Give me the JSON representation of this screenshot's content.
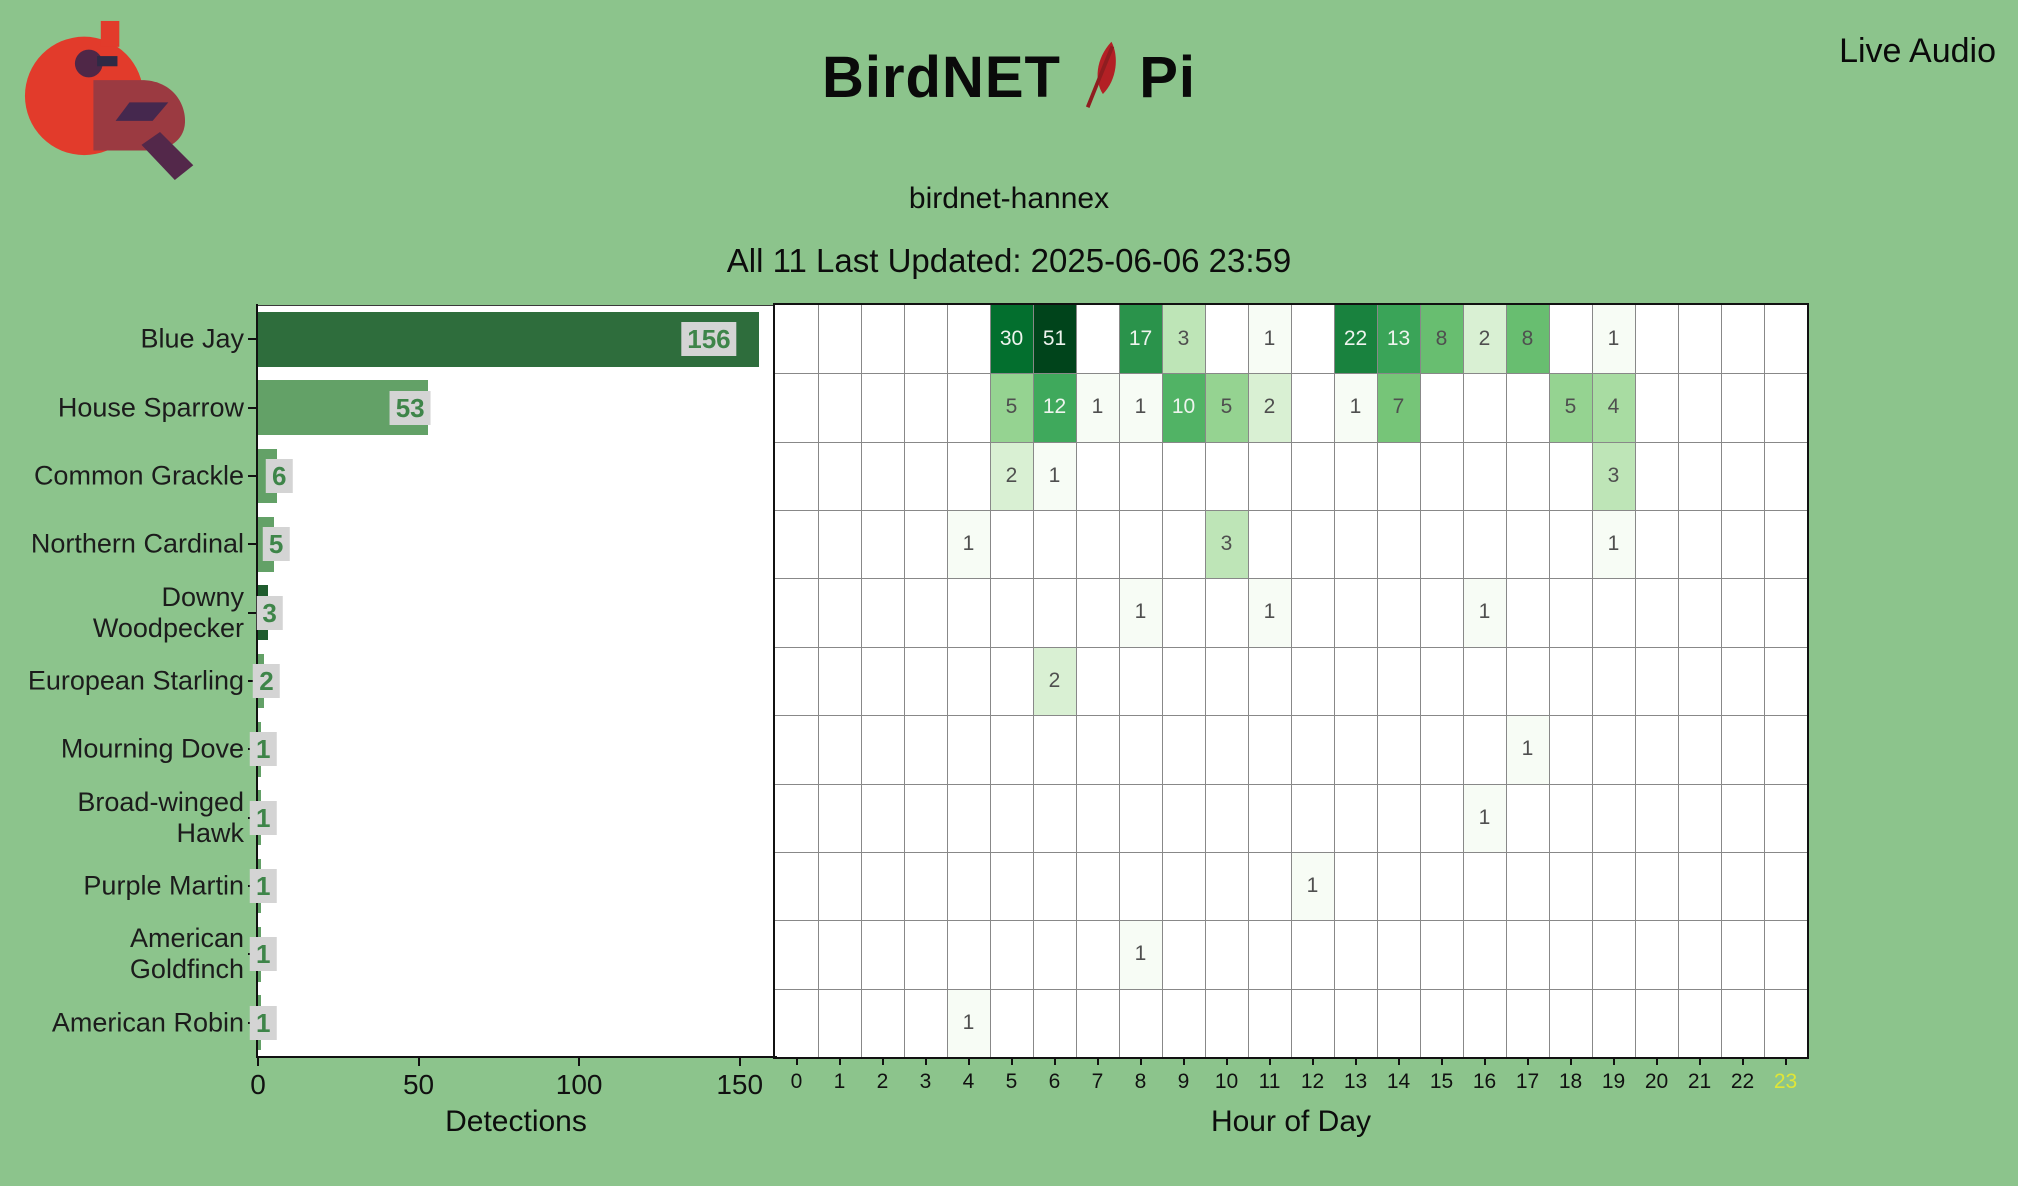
{
  "page": {
    "background": "#8cc48c"
  },
  "header": {
    "title": {
      "part1": "BirdNET",
      "part2": "Pi"
    },
    "nav": {
      "live_audio_label": "Live Audio"
    },
    "station_name": "birdnet-hannex",
    "status_line": "All 11 Last Updated: 2025-06-06 23:59"
  },
  "icons": {
    "logo": "cardinal-logo",
    "title_icon": "red-feather-icon"
  },
  "colors": {
    "background": "#8cc48c",
    "plot_bg": "#ffffff",
    "spine": "#111111",
    "grid_line": "#888888",
    "badge_bg": "#d4d4d4",
    "badge_text": "#3e8549",
    "cell_text_dark": "#4f4f4f",
    "cell_text_light": "#eef4ee",
    "current_hour_tick": "#e0e636",
    "logo_red": "#e23b2b",
    "logo_maroon": "#9b3a41",
    "logo_purple": "#45284e",
    "feather_red": "#b32025"
  },
  "chart_data": [
    {
      "type": "bar",
      "orientation": "horizontal",
      "xlabel": "Detections",
      "ylabel": "",
      "xticks": [
        0,
        50,
        100,
        150
      ],
      "xlim": [
        0,
        161
      ],
      "categories": [
        "Blue Jay",
        "House Sparrow",
        "Common Grackle",
        "Northern Cardinal",
        "Downy\nWoodpecker",
        "European Starling",
        "Mourning Dove",
        "Broad-winged\nHawk",
        "Purple Martin",
        "American\nGoldfinch",
        "American Robin"
      ],
      "values": [
        156,
        53,
        6,
        5,
        3,
        2,
        1,
        1,
        1,
        1,
        1
      ],
      "bar_colors": [
        "#2e6d3c",
        "#63a167",
        "#63a167",
        "#63a167",
        "#1f5c2e",
        "#63a167",
        "#63a167",
        "#63a167",
        "#63a167",
        "#63a167",
        "#63a167"
      ],
      "value_labels": [
        "156",
        "53",
        "6",
        "5",
        "3",
        "2",
        "1",
        "1",
        "1",
        "1",
        "1"
      ]
    },
    {
      "type": "heatmap",
      "xlabel": "Hour of Day",
      "ylabel": "",
      "colormap": "Greens",
      "norm": "log",
      "vmax": 51,
      "xticklabels": [
        "0",
        "1",
        "2",
        "3",
        "4",
        "5",
        "6",
        "7",
        "8",
        "9",
        "10",
        "11",
        "12",
        "13",
        "14",
        "15",
        "16",
        "17",
        "18",
        "19",
        "20",
        "21",
        "22",
        "23"
      ],
      "current_hour": "23",
      "rows": [
        "Blue Jay",
        "House Sparrow",
        "Common Grackle",
        "Northern Cardinal",
        "Downy Woodpecker",
        "European Starling",
        "Mourning Dove",
        "Broad-winged Hawk",
        "Purple Martin",
        "American Goldfinch",
        "American Robin"
      ],
      "values": [
        [
          0,
          0,
          0,
          0,
          0,
          30,
          51,
          0,
          17,
          3,
          0,
          1,
          0,
          22,
          13,
          8,
          2,
          8,
          0,
          1,
          0,
          0,
          0,
          0
        ],
        [
          0,
          0,
          0,
          0,
          0,
          5,
          12,
          1,
          1,
          10,
          5,
          2,
          0,
          1,
          7,
          0,
          0,
          0,
          5,
          4,
          0,
          0,
          0,
          0
        ],
        [
          0,
          0,
          0,
          0,
          0,
          2,
          1,
          0,
          0,
          0,
          0,
          0,
          0,
          0,
          0,
          0,
          0,
          0,
          0,
          3,
          0,
          0,
          0,
          0
        ],
        [
          0,
          0,
          0,
          0,
          1,
          0,
          0,
          0,
          0,
          0,
          3,
          0,
          0,
          0,
          0,
          0,
          0,
          0,
          0,
          1,
          0,
          0,
          0,
          0
        ],
        [
          0,
          0,
          0,
          0,
          0,
          0,
          0,
          0,
          1,
          0,
          0,
          1,
          0,
          0,
          0,
          0,
          1,
          0,
          0,
          0,
          0,
          0,
          0,
          0
        ],
        [
          0,
          0,
          0,
          0,
          0,
          0,
          2,
          0,
          0,
          0,
          0,
          0,
          0,
          0,
          0,
          0,
          0,
          0,
          0,
          0,
          0,
          0,
          0,
          0
        ],
        [
          0,
          0,
          0,
          0,
          0,
          0,
          0,
          0,
          0,
          0,
          0,
          0,
          0,
          0,
          0,
          0,
          0,
          1,
          0,
          0,
          0,
          0,
          0,
          0
        ],
        [
          0,
          0,
          0,
          0,
          0,
          0,
          0,
          0,
          0,
          0,
          0,
          0,
          0,
          0,
          0,
          0,
          1,
          0,
          0,
          0,
          0,
          0,
          0,
          0
        ],
        [
          0,
          0,
          0,
          0,
          0,
          0,
          0,
          0,
          0,
          0,
          0,
          0,
          1,
          0,
          0,
          0,
          0,
          0,
          0,
          0,
          0,
          0,
          0,
          0
        ],
        [
          0,
          0,
          0,
          0,
          0,
          0,
          0,
          0,
          1,
          0,
          0,
          0,
          0,
          0,
          0,
          0,
          0,
          0,
          0,
          0,
          0,
          0,
          0,
          0
        ],
        [
          0,
          0,
          0,
          0,
          1,
          0,
          0,
          0,
          0,
          0,
          0,
          0,
          0,
          0,
          0,
          0,
          0,
          0,
          0,
          0,
          0,
          0,
          0,
          0
        ]
      ]
    }
  ]
}
